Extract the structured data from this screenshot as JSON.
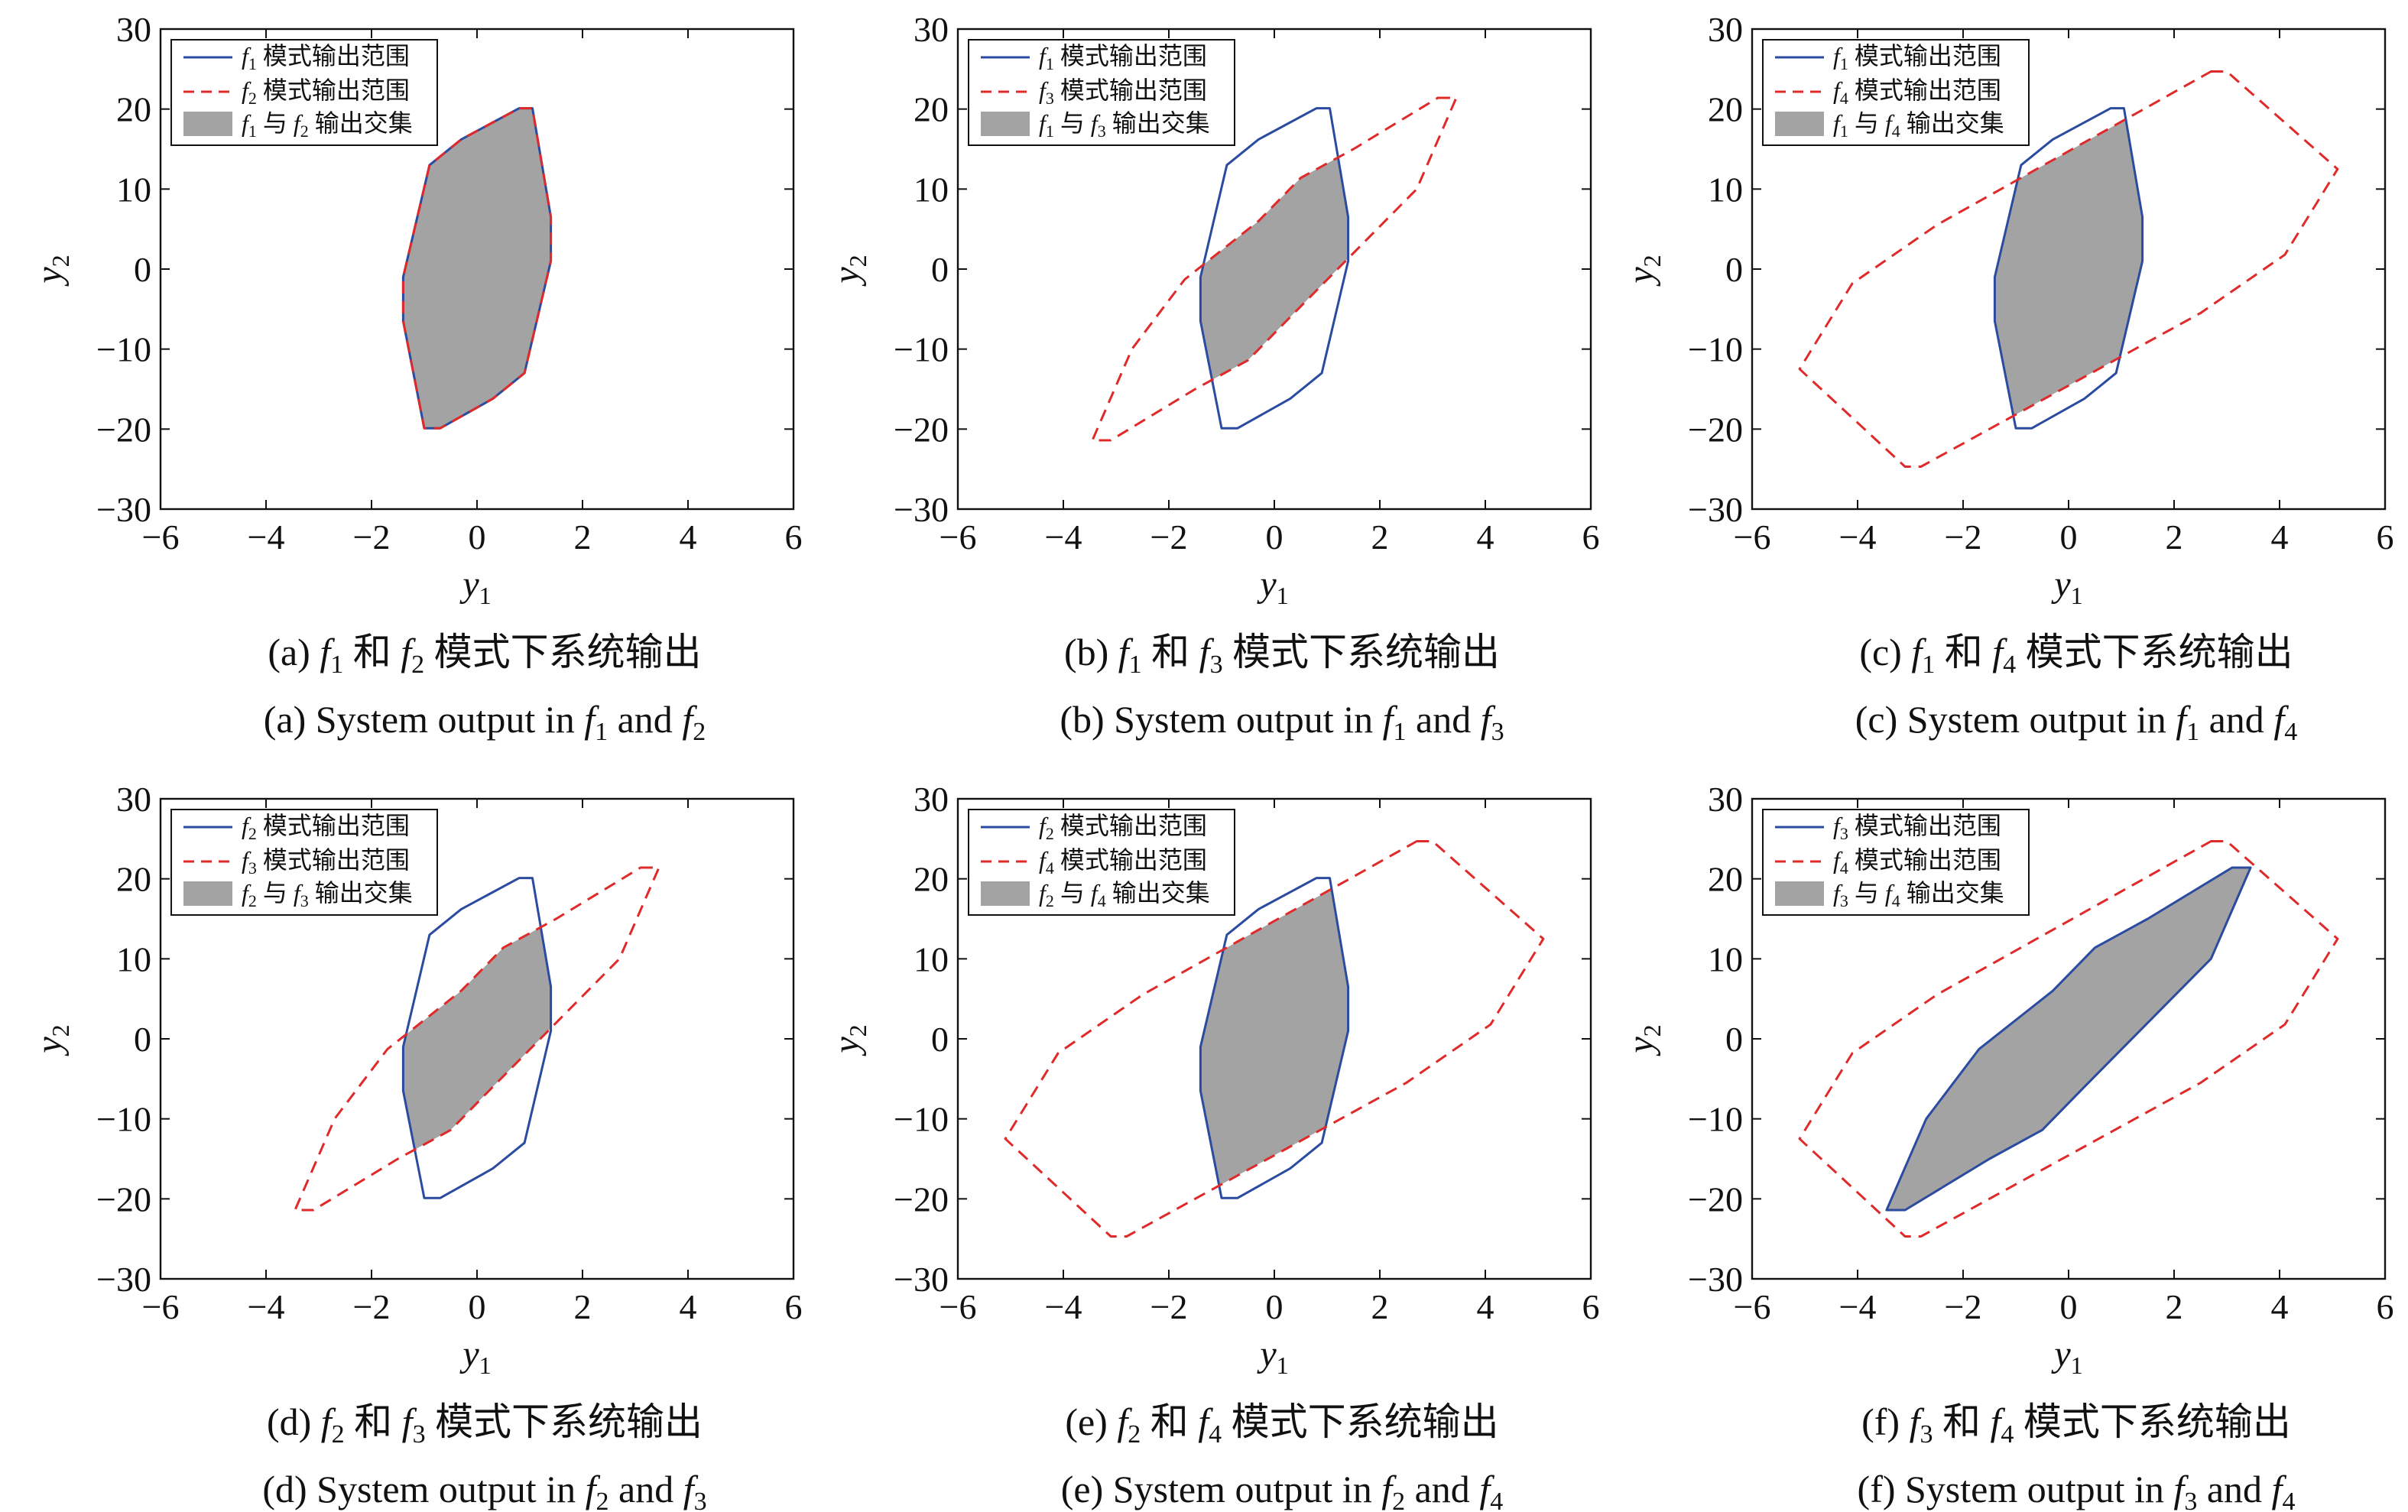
{
  "colors": {
    "mode_a_line": "#2b4ba0",
    "mode_b_line": "#e02a2a",
    "intersection_fill": "#a3a3a3",
    "axis": "#111111"
  },
  "polygons": {
    "f1": [
      [
        0.8,
        20.1
      ],
      [
        1.05,
        20.1
      ],
      [
        1.4,
        6.5
      ],
      [
        1.4,
        1.0
      ],
      [
        0.9,
        -13.0
      ],
      [
        0.3,
        -16.2
      ],
      [
        -0.7,
        -19.9
      ],
      [
        -1.0,
        -19.9
      ],
      [
        -1.4,
        -6.5
      ],
      [
        -1.4,
        -1.0
      ],
      [
        -0.9,
        13.0
      ],
      [
        -0.3,
        16.2
      ]
    ],
    "f3": [
      [
        3.1,
        21.4
      ],
      [
        3.45,
        21.4
      ],
      [
        2.7,
        10.0
      ],
      [
        0.3,
        -6.0
      ],
      [
        -0.5,
        -11.4
      ],
      [
        -1.5,
        -15.0
      ],
      [
        -3.1,
        -21.4
      ],
      [
        -3.45,
        -21.4
      ],
      [
        -2.7,
        -10.0
      ],
      [
        -1.7,
        -1.3
      ],
      [
        -0.3,
        6.0
      ],
      [
        0.5,
        11.4
      ],
      [
        1.5,
        15.0
      ]
    ],
    "f4": [
      [
        2.7,
        24.7
      ],
      [
        3.0,
        24.7
      ],
      [
        5.1,
        12.5
      ],
      [
        4.1,
        1.8
      ],
      [
        2.5,
        -5.5
      ],
      [
        -2.8,
        -24.7
      ],
      [
        -3.1,
        -24.7
      ],
      [
        -5.1,
        -12.5
      ],
      [
        -4.1,
        -1.8
      ],
      [
        -2.5,
        5.5
      ]
    ]
  },
  "chart_data": [
    {
      "type": "area",
      "ylabel": "y",
      "ylabel_sub": "2",
      "xlabel": "y",
      "xlabel_sub": "1",
      "xlim": [
        -6,
        6
      ],
      "ylim": [
        -30,
        30
      ],
      "xticks": [
        -6,
        -4,
        -2,
        0,
        2,
        4,
        6
      ],
      "yticks": [
        -30,
        -20,
        -10,
        0,
        10,
        20,
        30
      ],
      "xtick_labels": [
        "−6",
        "−4",
        "−2",
        "0",
        "2",
        "4",
        "6"
      ],
      "ytick_labels": [
        "−30",
        "−20",
        "−10",
        "0",
        "10",
        "20",
        "30"
      ],
      "legend_placement": "top-left",
      "series": [
        {
          "name": "f",
          "name_sub": "1",
          "name_rest": " 模式输出范围",
          "style": "solid",
          "polygon": "f1"
        },
        {
          "name": "f",
          "name_sub": "2",
          "name_rest": " 模式输出范围",
          "style": "dashed",
          "polygon": "f1"
        },
        {
          "name": "f",
          "name_sub": "1",
          "name_mid": " 与 ",
          "name2": "f",
          "name2_sub": "2",
          "name_rest": " 输出交集",
          "style": "fill",
          "polygon": "f1",
          "clip": "f1"
        }
      ],
      "caption_cn": {
        "pre": "(a) ",
        "v1": "f",
        "s1": "1",
        "mid": " 和 ",
        "v2": "f",
        "s2": "2",
        "post": " 模式下系统输出"
      },
      "caption_en": {
        "pre": "(a) System output in ",
        "v1": "f",
        "s1": "1",
        "mid": " and ",
        "v2": "f",
        "s2": "2",
        "post": ""
      }
    },
    {
      "type": "area",
      "ylabel": "y",
      "ylabel_sub": "2",
      "xlabel": "y",
      "xlabel_sub": "1",
      "xlim": [
        -6,
        6
      ],
      "ylim": [
        -30,
        30
      ],
      "xticks": [
        -6,
        -4,
        -2,
        0,
        2,
        4,
        6
      ],
      "yticks": [
        -30,
        -20,
        -10,
        0,
        10,
        20,
        30
      ],
      "xtick_labels": [
        "−6",
        "−4",
        "−2",
        "0",
        "2",
        "4",
        "6"
      ],
      "ytick_labels": [
        "−30",
        "−20",
        "−10",
        "0",
        "10",
        "20",
        "30"
      ],
      "legend_placement": "top-left",
      "series": [
        {
          "name": "f",
          "name_sub": "1",
          "name_rest": " 模式输出范围",
          "style": "solid",
          "polygon": "f1"
        },
        {
          "name": "f",
          "name_sub": "3",
          "name_rest": " 模式输出范围",
          "style": "dashed",
          "polygon": "f3"
        },
        {
          "name": "f",
          "name_sub": "1",
          "name_mid": " 与 ",
          "name2": "f",
          "name2_sub": "3",
          "name_rest": " 输出交集",
          "style": "fill",
          "polygon": "f1",
          "clip": "f3"
        }
      ],
      "caption_cn": {
        "pre": "(b) ",
        "v1": "f",
        "s1": "1",
        "mid": " 和 ",
        "v2": "f",
        "s2": "3",
        "post": " 模式下系统输出"
      },
      "caption_en": {
        "pre": "(b) System output in ",
        "v1": "f",
        "s1": "1",
        "mid": " and ",
        "v2": "f",
        "s2": "3",
        "post": ""
      }
    },
    {
      "type": "area",
      "ylabel": "y",
      "ylabel_sub": "2",
      "xlabel": "y",
      "xlabel_sub": "1",
      "xlim": [
        -6,
        6
      ],
      "ylim": [
        -30,
        30
      ],
      "xticks": [
        -6,
        -4,
        -2,
        0,
        2,
        4,
        6
      ],
      "yticks": [
        -30,
        -20,
        -10,
        0,
        10,
        20,
        30
      ],
      "xtick_labels": [
        "−6",
        "−4",
        "−2",
        "0",
        "2",
        "4",
        "6"
      ],
      "ytick_labels": [
        "−30",
        "−20",
        "−10",
        "0",
        "10",
        "20",
        "30"
      ],
      "legend_placement": "top-left",
      "series": [
        {
          "name": "f",
          "name_sub": "1",
          "name_rest": " 模式输出范围",
          "style": "solid",
          "polygon": "f1"
        },
        {
          "name": "f",
          "name_sub": "4",
          "name_rest": " 模式输出范围",
          "style": "dashed",
          "polygon": "f4"
        },
        {
          "name": "f",
          "name_sub": "1",
          "name_mid": " 与 ",
          "name2": "f",
          "name2_sub": "4",
          "name_rest": " 输出交集",
          "style": "fill",
          "polygon": "f1",
          "clip": "f4"
        }
      ],
      "caption_cn": {
        "pre": "(c) ",
        "v1": "f",
        "s1": "1",
        "mid": " 和 ",
        "v2": "f",
        "s2": "4",
        "post": " 模式下系统输出"
      },
      "caption_en": {
        "pre": "(c) System output in ",
        "v1": "f",
        "s1": "1",
        "mid": " and ",
        "v2": "f",
        "s2": "4",
        "post": ""
      }
    },
    {
      "type": "area",
      "ylabel": "y",
      "ylabel_sub": "2",
      "xlabel": "y",
      "xlabel_sub": "1",
      "xlim": [
        -6,
        6
      ],
      "ylim": [
        -30,
        30
      ],
      "xticks": [
        -6,
        -4,
        -2,
        0,
        2,
        4,
        6
      ],
      "yticks": [
        -30,
        -20,
        -10,
        0,
        10,
        20,
        30
      ],
      "xtick_labels": [
        "−6",
        "−4",
        "−2",
        "0",
        "2",
        "4",
        "6"
      ],
      "ytick_labels": [
        "−30",
        "−20",
        "−10",
        "0",
        "10",
        "20",
        "30"
      ],
      "legend_placement": "top-left",
      "series": [
        {
          "name": "f",
          "name_sub": "2",
          "name_rest": " 模式输出范围",
          "style": "solid",
          "polygon": "f1"
        },
        {
          "name": "f",
          "name_sub": "3",
          "name_rest": " 模式输出范围",
          "style": "dashed",
          "polygon": "f3"
        },
        {
          "name": "f",
          "name_sub": "2",
          "name_mid": " 与 ",
          "name2": "f",
          "name2_sub": "3",
          "name_rest": " 输出交集",
          "style": "fill",
          "polygon": "f1",
          "clip": "f3"
        }
      ],
      "caption_cn": {
        "pre": "(d) ",
        "v1": "f",
        "s1": "2",
        "mid": " 和 ",
        "v2": "f",
        "s2": "3",
        "post": " 模式下系统输出"
      },
      "caption_en": {
        "pre": "(d) System output in ",
        "v1": "f",
        "s1": "2",
        "mid": " and ",
        "v2": "f",
        "s2": "3",
        "post": ""
      }
    },
    {
      "type": "area",
      "ylabel": "y",
      "ylabel_sub": "2",
      "xlabel": "y",
      "xlabel_sub": "1",
      "xlim": [
        -6,
        6
      ],
      "ylim": [
        -30,
        30
      ],
      "xticks": [
        -6,
        -4,
        -2,
        0,
        2,
        4,
        6
      ],
      "yticks": [
        -30,
        -20,
        -10,
        0,
        10,
        20,
        30
      ],
      "xtick_labels": [
        "−6",
        "−4",
        "−2",
        "0",
        "2",
        "4",
        "6"
      ],
      "ytick_labels": [
        "−30",
        "−20",
        "−10",
        "0",
        "10",
        "20",
        "30"
      ],
      "legend_placement": "top-left",
      "series": [
        {
          "name": "f",
          "name_sub": "2",
          "name_rest": " 模式输出范围",
          "style": "solid",
          "polygon": "f1"
        },
        {
          "name": "f",
          "name_sub": "4",
          "name_rest": " 模式输出范围",
          "style": "dashed",
          "polygon": "f4"
        },
        {
          "name": "f",
          "name_sub": "2",
          "name_mid": " 与 ",
          "name2": "f",
          "name2_sub": "4",
          "name_rest": " 输出交集",
          "style": "fill",
          "polygon": "f1",
          "clip": "f4"
        }
      ],
      "caption_cn": {
        "pre": "(e) ",
        "v1": "f",
        "s1": "2",
        "mid": " 和 ",
        "v2": "f",
        "s2": "4",
        "post": " 模式下系统输出"
      },
      "caption_en": {
        "pre": "(e) System output in ",
        "v1": "f",
        "s1": "2",
        "mid": " and ",
        "v2": "f",
        "s2": "4",
        "post": ""
      }
    },
    {
      "type": "area",
      "ylabel": "y",
      "ylabel_sub": "2",
      "xlabel": "y",
      "xlabel_sub": "1",
      "xlim": [
        -6,
        6
      ],
      "ylim": [
        -30,
        30
      ],
      "xticks": [
        -6,
        -4,
        -2,
        0,
        2,
        4,
        6
      ],
      "yticks": [
        -30,
        -20,
        -10,
        0,
        10,
        20,
        30
      ],
      "xtick_labels": [
        "−6",
        "−4",
        "−2",
        "0",
        "2",
        "4",
        "6"
      ],
      "ytick_labels": [
        "−30",
        "−20",
        "−10",
        "0",
        "10",
        "20",
        "30"
      ],
      "legend_placement": "top-left",
      "series": [
        {
          "name": "f",
          "name_sub": "3",
          "name_rest": " 模式输出范围",
          "style": "solid",
          "polygon": "f3"
        },
        {
          "name": "f",
          "name_sub": "4",
          "name_rest": " 模式输出范围",
          "style": "dashed",
          "polygon": "f4"
        },
        {
          "name": "f",
          "name_sub": "3",
          "name_mid": " 与 ",
          "name2": "f",
          "name2_sub": "4",
          "name_rest": " 输出交集",
          "style": "fill",
          "polygon": "f3",
          "clip": "f4"
        }
      ],
      "caption_cn": {
        "pre": "(f) ",
        "v1": "f",
        "s1": "3",
        "mid": " 和 ",
        "v2": "f",
        "s2": "4",
        "post": " 模式下系统输出"
      },
      "caption_en": {
        "pre": "(f) System output in ",
        "v1": "f",
        "s1": "3",
        "mid": " and ",
        "v2": "f",
        "s2": "4",
        "post": ""
      }
    }
  ]
}
